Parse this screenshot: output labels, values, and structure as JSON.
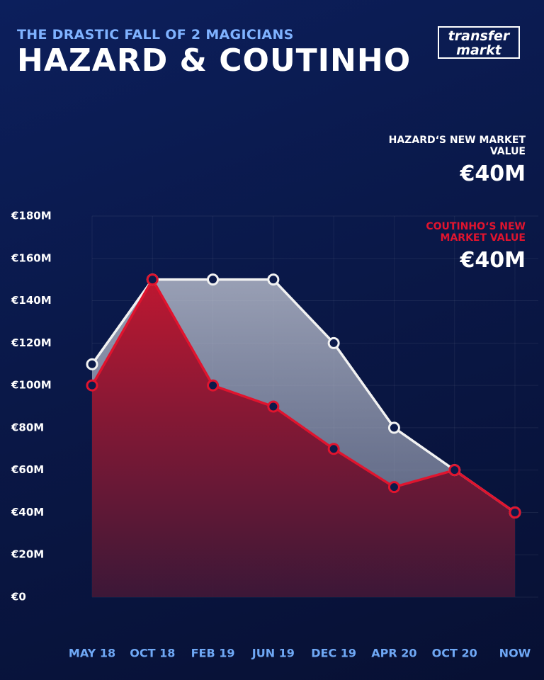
{
  "chart_data": {
    "type": "area",
    "subtitle": "THE DRASTIC FALL OF 2 MAGICIANS",
    "title": "HAZARD & COUTINHO",
    "logo": [
      "transfer",
      "markt"
    ],
    "annotations": [
      {
        "label": "HAZARD‘S NEW MARKET VALUE",
        "value": "€40M",
        "color": "#ffffff"
      },
      {
        "label": "COUTINHO‘S NEW MARKET VALUE",
        "value": "€40M",
        "color": "#e0142e"
      }
    ],
    "categories": [
      "MAY 18",
      "OCT 18",
      "FEB 19",
      "JUN 19",
      "DEC 19",
      "APR 20",
      "OCT 20",
      "NOW"
    ],
    "series": [
      {
        "color": "#f2f2f2",
        "values": [
          110,
          150,
          150,
          150,
          120,
          80,
          60,
          40
        ]
      },
      {
        "color": "#e0142e",
        "values": [
          100,
          150,
          100,
          90,
          70,
          52,
          60,
          40
        ]
      }
    ],
    "ylim": [
      0,
      180
    ],
    "yticks": [
      {
        "value": 0,
        "label": "€0"
      },
      {
        "value": 20,
        "label": "€20M"
      },
      {
        "value": 40,
        "label": "€40M"
      },
      {
        "value": 60,
        "label": "€60M"
      },
      {
        "value": 80,
        "label": "€80M"
      },
      {
        "value": 100,
        "label": "€100M"
      },
      {
        "value": 120,
        "label": "€120M"
      },
      {
        "value": 140,
        "label": "€140M"
      },
      {
        "value": 160,
        "label": "€160M"
      },
      {
        "value": 180,
        "label": "€180M"
      }
    ],
    "grid": true
  }
}
